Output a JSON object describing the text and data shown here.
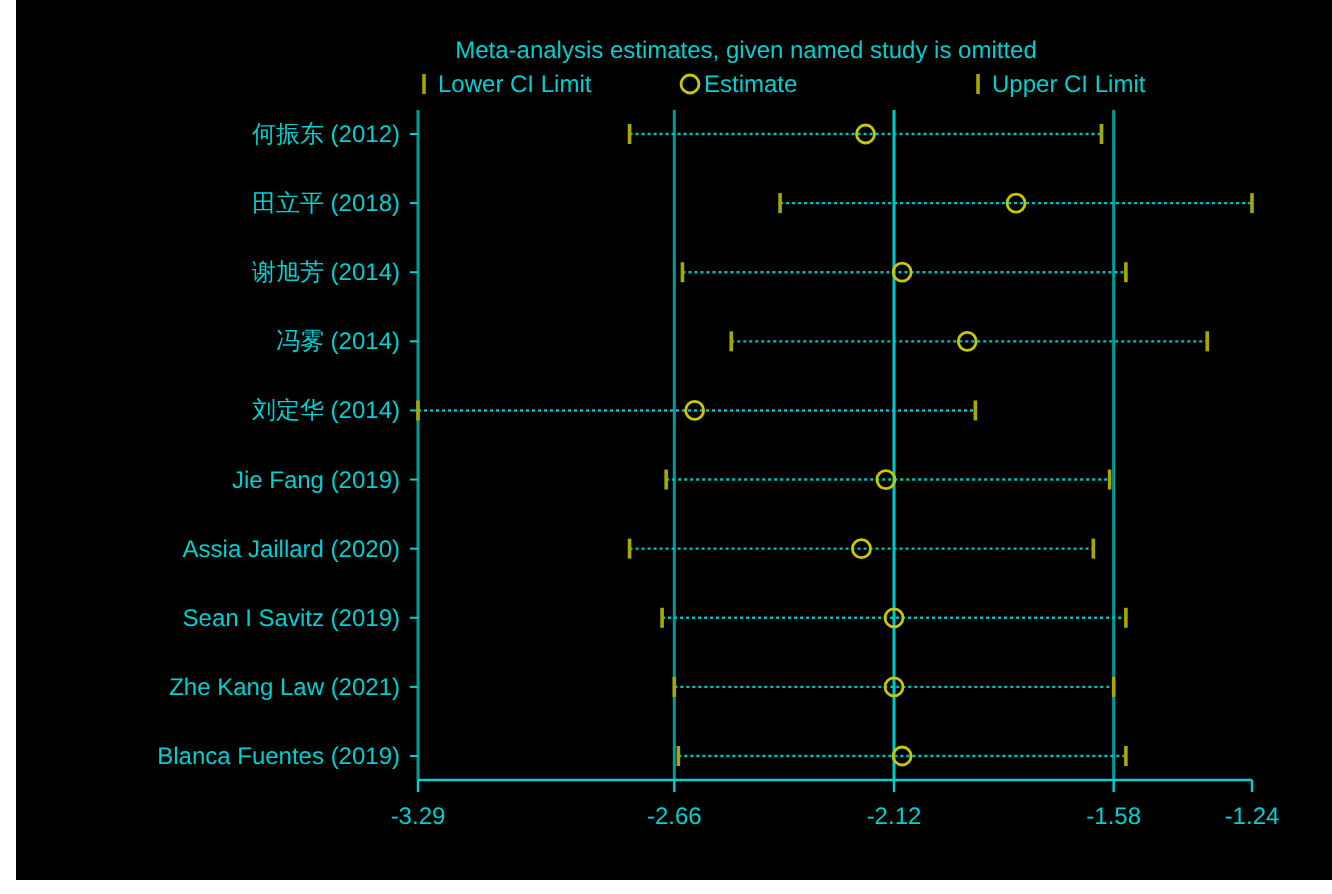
{
  "chart_data": {
    "type": "scatter",
    "orientation": "horizontal",
    "legend_title": "Meta-analysis estimates, given named study is omitted",
    "categories": [
      "何振东 (2012)",
      "田立平 (2018)",
      "谢旭芳 (2014)",
      "冯雾 (2014)",
      "刘定华 (2014)",
      "Jie Fang (2019)",
      "Assia Jaillard (2020)",
      "Sean I Savitz (2019)",
      "Zhe Kang Law (2021)",
      "Blanca Fuentes (2019)"
    ],
    "series": [
      {
        "name": "Estimate",
        "color": "#c8c800",
        "marker": "circle",
        "values": [
          -2.19,
          -1.82,
          -2.1,
          -1.94,
          -2.61,
          -2.14,
          -2.2,
          -2.12,
          -2.12,
          -2.1
        ],
        "errors": [
          [
            -2.77,
            -1.61
          ],
          [
            -2.4,
            -1.24
          ],
          [
            -2.64,
            -1.55
          ],
          [
            -2.52,
            -1.35
          ],
          [
            -3.29,
            -1.92
          ],
          [
            -2.68,
            -1.59
          ],
          [
            -2.77,
            -1.63
          ],
          [
            -2.69,
            -1.55
          ],
          [
            -2.66,
            -1.58
          ],
          [
            -2.65,
            -1.55
          ]
        ]
      }
    ],
    "annotations": [
      "Lower CI Limit",
      "Upper CI Limit"
    ],
    "line_style": "dotted",
    "xlim": [
      -3.29,
      -1.24
    ],
    "xticks": [
      -3.29,
      -2.66,
      -2.12,
      -1.58,
      -1.24
    ],
    "ref_lines": [
      {
        "axis": "x",
        "value": -2.66,
        "color": "#009c9c"
      },
      {
        "axis": "x",
        "value": -2.12,
        "color": "#00c8c8"
      },
      {
        "axis": "x",
        "value": -1.58,
        "color": "#009c9c"
      }
    ],
    "legend": "top",
    "grid": false
  }
}
